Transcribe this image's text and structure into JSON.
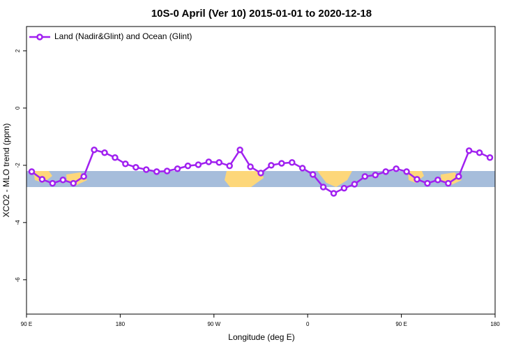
{
  "chart_data": {
    "type": "line",
    "title": "10S-0 April (Ver 10)   2015-01-01 to 2020-12-18",
    "x_label": "Longitude (deg E)",
    "y_label": "XCO2 - MLO trend (ppm)",
    "x": [
      95,
      105,
      115,
      125,
      135,
      145,
      155,
      165,
      175,
      185,
      195,
      205,
      215,
      225,
      235,
      245,
      255,
      265,
      275,
      285,
      295,
      305,
      315,
      325,
      335,
      345,
      355,
      365,
      375,
      385,
      395,
      405,
      415,
      425,
      435,
      445,
      455,
      465,
      475,
      485,
      495,
      505,
      515,
      525,
      535
    ],
    "series": [
      {
        "name": "Land (Nadir&Glint) and Ocean (Glint)",
        "color": "#a020f0",
        "values": [
          -2.22,
          -2.49,
          -2.63,
          -2.51,
          -2.63,
          -2.39,
          -1.46,
          -1.56,
          -1.73,
          -1.95,
          -2.07,
          -2.15,
          -2.22,
          -2.2,
          -2.12,
          -2.02,
          -1.98,
          -1.88,
          -1.9,
          -2.02,
          -1.46,
          -2.05,
          -2.27,
          -2.0,
          -1.93,
          -1.9,
          -2.1,
          -2.32,
          -2.76,
          -2.98,
          -2.8,
          -2.66,
          -2.39,
          -2.34,
          -2.22,
          -2.12,
          -2.22,
          -2.49,
          -2.63,
          -2.51,
          -2.63,
          -2.39,
          -1.49,
          -1.56,
          -1.73
        ]
      }
    ],
    "xlim": [
      90,
      540
    ],
    "xticks": [
      {
        "value": 90,
        "label": "90 E"
      },
      180,
      {
        "value": 270,
        "label": "90 W"
      },
      {
        "value": 360,
        "label": "0"
      },
      {
        "value": 450,
        "label": "90 E"
      },
      {
        "value": 540,
        "label": "180"
      }
    ],
    "ylim": [
      -7.2,
      2.85
    ],
    "yticks": [
      2,
      0,
      -2,
      -4,
      -6
    ],
    "legend": "top-left"
  }
}
